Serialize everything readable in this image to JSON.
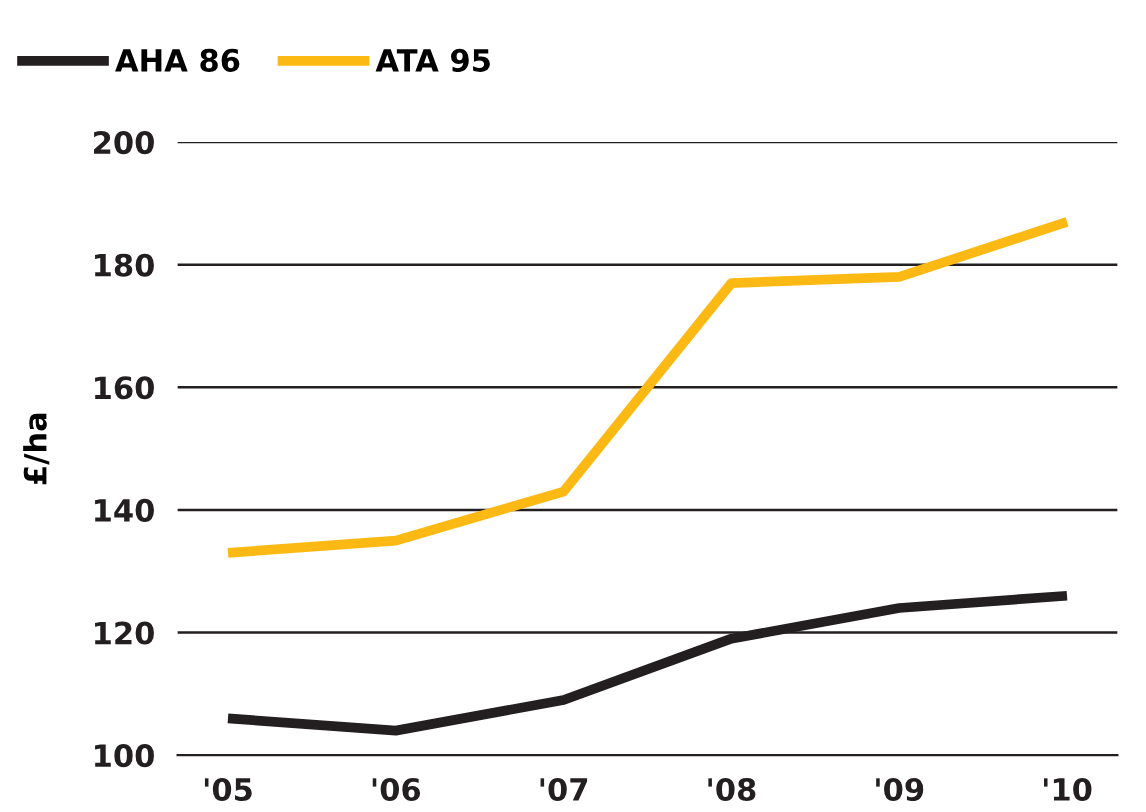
{
  "chart_data": {
    "type": "line",
    "ylabel": "£/ha",
    "categories": [
      "'05",
      "'06",
      "'07",
      "'08",
      "'09",
      "'10"
    ],
    "series": [
      {
        "name": "AHA 86",
        "color": "#231f20",
        "values": [
          106,
          104,
          109,
          119,
          124,
          126
        ]
      },
      {
        "name": "ATA 95",
        "color": "#fdb913",
        "values": [
          133,
          135,
          143,
          177,
          178,
          187
        ]
      }
    ],
    "ylim": [
      100,
      200
    ],
    "yticks": [
      100,
      120,
      140,
      160,
      180,
      200
    ],
    "grid": "y",
    "legend": "top left",
    "marker": "none",
    "line_style": "solid"
  }
}
